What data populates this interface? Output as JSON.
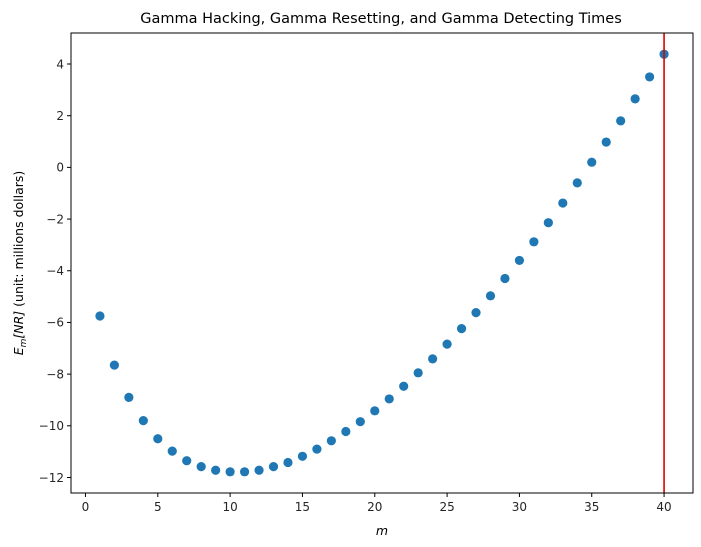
{
  "chart_data": {
    "type": "scatter",
    "title": "Gamma Hacking, Gamma Resetting, and Gamma Detecting Times",
    "xlabel": "m",
    "ylabel": {
      "E": "E",
      "sub": "m",
      "bracket": "[NR]",
      "rest": " (unit: millions dollars)"
    },
    "xlim": [
      -1,
      42
    ],
    "ylim": [
      -12.6,
      5.2
    ],
    "xticks": [
      0,
      5,
      10,
      15,
      20,
      25,
      30,
      35,
      40
    ],
    "yticks": [
      -12,
      -10,
      -8,
      -6,
      -4,
      -2,
      0,
      2,
      4
    ],
    "marker_color": "#1f77b4",
    "vline": {
      "x": 40,
      "color": "#e00000"
    },
    "grid": false,
    "x": [
      1,
      2,
      3,
      4,
      5,
      6,
      7,
      8,
      9,
      10,
      11,
      12,
      13,
      14,
      15,
      16,
      17,
      18,
      19,
      20,
      21,
      22,
      23,
      24,
      25,
      26,
      27,
      28,
      29,
      30,
      31,
      32,
      33,
      34,
      35,
      36,
      37,
      38,
      39,
      40
    ],
    "y": [
      -5.75,
      -7.65,
      -8.9,
      -9.8,
      -10.5,
      -10.98,
      -11.35,
      -11.58,
      -11.72,
      -11.78,
      -11.78,
      -11.72,
      -11.58,
      -11.42,
      -11.18,
      -10.9,
      -10.58,
      -10.22,
      -9.84,
      -9.42,
      -8.96,
      -8.47,
      -7.95,
      -7.41,
      -6.84,
      -6.24,
      -5.62,
      -4.97,
      -4.3,
      -3.6,
      -2.88,
      -2.14,
      -1.38,
      -0.6,
      0.2,
      0.98,
      1.8,
      2.65,
      3.5,
      4.38
    ]
  }
}
